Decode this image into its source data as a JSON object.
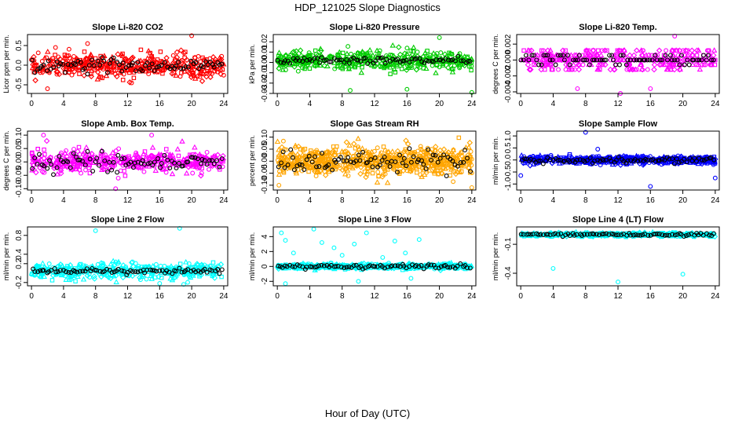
{
  "page_title": "HDP_121025  Slope Diagnostics",
  "x_axis_label": "Hour of Day (UTC)",
  "chart_data": [
    {
      "type": "scatter",
      "title": "Slope Li-820 CO2",
      "ylabel": "Licor ppm per min.",
      "color": "#ff0000",
      "xlim": [
        -0.5,
        24.5
      ],
      "ylim": [
        -0.72,
        0.78
      ],
      "xticks": [
        0,
        4,
        8,
        12,
        16,
        20,
        24
      ],
      "yticks": [
        -0.5,
        0,
        0.5
      ],
      "ytick_labels": [
        "-0.5",
        "0.0",
        "0.5"
      ],
      "main_center": 0.0,
      "main_spread": 0.28,
      "main_n": 420,
      "black_spread": 0.2,
      "black_n": 80,
      "outliers": [
        {
          "x": 2.0,
          "y": -0.6
        },
        {
          "x": 7.0,
          "y": 0.55
        },
        {
          "x": 20.0,
          "y": 0.75
        },
        {
          "x": 3.0,
          "y": 0.45
        },
        {
          "x": 12.5,
          "y": -0.45
        }
      ]
    },
    {
      "type": "scatter",
      "title": "Slope Li-820 Pressure",
      "ylabel": "kPa per min.",
      "color": "#00cc00",
      "xlim": [
        -0.5,
        24.5
      ],
      "ylim": [
        -0.03,
        0.027
      ],
      "xticks": [
        0,
        4,
        8,
        12,
        16,
        20,
        24
      ],
      "yticks": [
        -0.03,
        -0.02,
        -0.01,
        0.0,
        0.01,
        0.02
      ],
      "ytick_labels": [
        "-0.03",
        "-0.02",
        "-0.01",
        "0.00",
        "0.01",
        "0.02"
      ],
      "main_center": 0.002,
      "main_spread": 0.009,
      "main_n": 420,
      "black_spread": 0.004,
      "black_n": 80,
      "outliers": [
        {
          "x": 9.0,
          "y": -0.027
        },
        {
          "x": 16.0,
          "y": -0.026
        },
        {
          "x": 24.0,
          "y": -0.029
        },
        {
          "x": 20.0,
          "y": 0.024
        }
      ]
    },
    {
      "type": "scatter",
      "title": "Slope Li-820 Temp.",
      "ylabel": "degrees C per min.",
      "color": "#ff00ff",
      "xlim": [
        -0.5,
        24.5
      ],
      "ylim": [
        -0.0042,
        0.0032
      ],
      "xticks": [
        0,
        4,
        8,
        12,
        16,
        20,
        24
      ],
      "yticks": [
        -0.004,
        -0.002,
        0.0,
        0.002
      ],
      "ytick_labels": [
        "-0.004",
        "-0.002",
        "0.000",
        "0.002"
      ],
      "quantized": [
        0.0,
        0.0006,
        -0.0006,
        -0.0012,
        0.0012
      ],
      "main_center": 0.0,
      "main_spread": 0.0007,
      "main_n": 380,
      "black_spread": 0.0006,
      "black_n": 80,
      "outliers": [
        {
          "x": 7.0,
          "y": -0.0036
        },
        {
          "x": 12.3,
          "y": -0.0042
        },
        {
          "x": 19.0,
          "y": 0.003
        },
        {
          "x": 16.0,
          "y": -0.0036
        }
      ]
    },
    {
      "type": "scatter",
      "title": "Slope Amb. Box Temp.",
      "ylabel": "degrees C per min.",
      "color": "#ff00ff",
      "xlim": [
        -0.5,
        24.5
      ],
      "ylim": [
        -0.105,
        0.115
      ],
      "xticks": [
        0,
        4,
        8,
        12,
        16,
        20,
        24
      ],
      "yticks": [
        -0.1,
        -0.05,
        0.0,
        0.05,
        0.1
      ],
      "ytick_labels": [
        "-0.10",
        "-0.05",
        "0.00",
        "0.05",
        "0.10"
      ],
      "main_center": 0.0,
      "main_spread": 0.04,
      "main_n": 420,
      "black_spread": 0.035,
      "black_n": 80,
      "outliers": [
        {
          "x": 1.5,
          "y": 0.1
        },
        {
          "x": 10.5,
          "y": -0.1
        },
        {
          "x": 15.0,
          "y": 0.1
        }
      ]
    },
    {
      "type": "scatter",
      "title": "Slope Gas Stream RH",
      "ylabel": "percent per min.",
      "color": "#ffa500",
      "xlim": [
        -0.5,
        24.5
      ],
      "ylim": [
        -0.12,
        0.125
      ],
      "xticks": [
        0,
        4,
        8,
        12,
        16,
        20,
        24
      ],
      "yticks": [
        -0.1,
        -0.05,
        0.0,
        0.05,
        0.1
      ],
      "ytick_labels": [
        "-0.10",
        "-0.05",
        "0.00",
        "0.05",
        "0.10"
      ],
      "main_center": 0.0,
      "main_spread": 0.06,
      "main_n": 650,
      "black_spread": 0.045,
      "black_n": 80,
      "outliers": [
        {
          "x": 24.0,
          "y": -0.11
        },
        {
          "x": 0.2,
          "y": -0.1
        }
      ]
    },
    {
      "type": "scatter",
      "title": "Slope Sample Flow",
      "ylabel": "ml/min per min.",
      "color": "#0000ff",
      "xlim": [
        -0.5,
        24.5
      ],
      "ylim": [
        -1.25,
        1.2
      ],
      "xticks": [
        0,
        4,
        8,
        12,
        16,
        20,
        24
      ],
      "yticks": [
        -1.0,
        -0.5,
        0.0,
        0.5,
        1.0
      ],
      "ytick_labels": [
        "-1.0",
        "-0.5",
        "0.0",
        "0.5",
        "1.0"
      ],
      "main_center": 0.0,
      "main_spread": 0.16,
      "main_n": 520,
      "black_spread": 0.13,
      "black_n": 80,
      "outliers": [
        {
          "x": 8.0,
          "y": 1.15
        },
        {
          "x": 16.0,
          "y": -1.1
        },
        {
          "x": 24.0,
          "y": -0.75
        },
        {
          "x": 0.0,
          "y": -0.65
        },
        {
          "x": 9.5,
          "y": 0.45
        }
      ]
    },
    {
      "type": "scatter",
      "title": "Slope Line 2 Flow",
      "ylabel": "ml/min per min.",
      "color": "#00ffff",
      "xlim": [
        -0.5,
        24.5
      ],
      "ylim": [
        -0.27,
        0.98
      ],
      "xticks": [
        0,
        4,
        8,
        12,
        16,
        20,
        24
      ],
      "yticks": [
        -0.2,
        0.2,
        0.4,
        0.8
      ],
      "ytick_labels": [
        "-0.2",
        "0.2",
        "0.4",
        "0.8"
      ],
      "main_center": 0.05,
      "main_spread": 0.16,
      "main_n": 380,
      "black_spread": 0.06,
      "black_n": 80,
      "outliers": [
        {
          "x": 8.0,
          "y": 0.9
        },
        {
          "x": 18.5,
          "y": 0.95
        },
        {
          "x": 16.0,
          "y": -0.22
        },
        {
          "x": 19.0,
          "y": -0.24
        }
      ]
    },
    {
      "type": "scatter",
      "title": "Slope Line 3 Flow",
      "ylabel": "ml/min per min.",
      "color": "#00ffff",
      "xlim": [
        -0.5,
        24.5
      ],
      "ylim": [
        -2.6,
        5.3
      ],
      "xticks": [
        0,
        4,
        8,
        12,
        16,
        20,
        24
      ],
      "yticks": [
        -2,
        0,
        2,
        4
      ],
      "ytick_labels": [
        "-2",
        "0",
        "2",
        "4"
      ],
      "main_center": 0.0,
      "main_spread": 0.35,
      "main_n": 450,
      "black_spread": 0.3,
      "black_n": 80,
      "outliers": [
        {
          "x": 0.5,
          "y": 4.5
        },
        {
          "x": 1.0,
          "y": 3.5
        },
        {
          "x": 2.0,
          "y": 1.8
        },
        {
          "x": 4.5,
          "y": 5.0
        },
        {
          "x": 5.5,
          "y": 3.2
        },
        {
          "x": 7.0,
          "y": 2.5
        },
        {
          "x": 8.0,
          "y": 1.5
        },
        {
          "x": 9.5,
          "y": 3.0
        },
        {
          "x": 11.0,
          "y": 4.5
        },
        {
          "x": 13.0,
          "y": 1.2
        },
        {
          "x": 14.5,
          "y": 3.4
        },
        {
          "x": 15.8,
          "y": 1.8
        },
        {
          "x": 17.5,
          "y": 3.6
        },
        {
          "x": 1.0,
          "y": -2.3
        },
        {
          "x": 10.0,
          "y": -2.0
        },
        {
          "x": 16.5,
          "y": -1.6
        }
      ]
    },
    {
      "type": "scatter",
      "title": "Slope Line 4 (LT) Flow",
      "ylabel": "ml/min per min.",
      "color": "#00ffff",
      "xlim": [
        -0.5,
        24.5
      ],
      "ylim": [
        -0.53,
        0.08
      ],
      "xticks": [
        0,
        4,
        8,
        12,
        16,
        20,
        24
      ],
      "yticks": [
        -0.4,
        -0.1
      ],
      "ytick_labels": [
        "-0.4",
        "-0.1"
      ],
      "main_center": 0.0,
      "main_spread": 0.018,
      "main_n": 420,
      "black_spread": 0.015,
      "black_n": 80,
      "outliers": [
        {
          "x": 4.0,
          "y": -0.35
        },
        {
          "x": 12.0,
          "y": -0.49
        },
        {
          "x": 20.0,
          "y": -0.41
        }
      ]
    }
  ]
}
